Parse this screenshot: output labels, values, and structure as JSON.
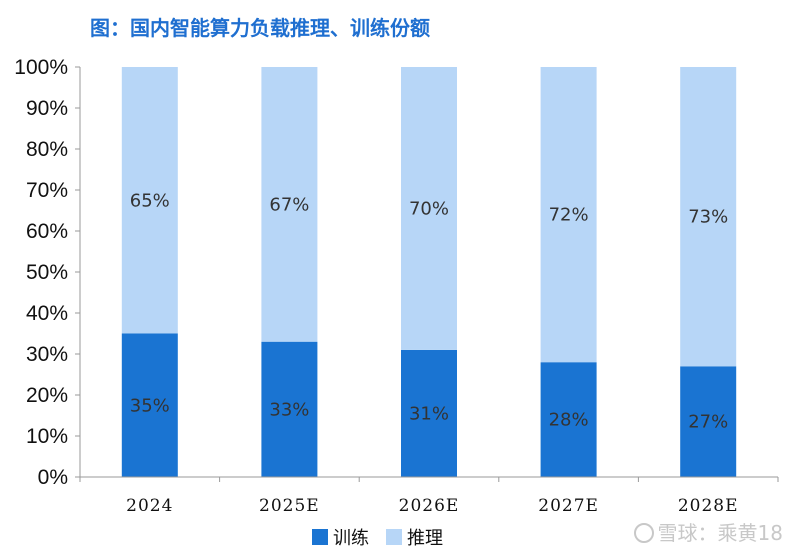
{
  "chart_data": {
    "type": "bar",
    "stacked": true,
    "title": "图：国内智能算力负载推理、训练份额",
    "categories": [
      "2024",
      "2025E",
      "2026E",
      "2027E",
      "2028E"
    ],
    "series": [
      {
        "name": "训练",
        "values": [
          35,
          33,
          31,
          28,
          27
        ],
        "labels": [
          "35%",
          "33%",
          "31%",
          "28%",
          "27%"
        ],
        "color": "#1a74d2"
      },
      {
        "name": "推理",
        "values": [
          65,
          67,
          70,
          72,
          73
        ],
        "labels": [
          "65%",
          "67%",
          "70%",
          "72%",
          "73%"
        ],
        "color": "#b7d6f7"
      }
    ],
    "ylim": [
      0,
      100
    ],
    "yticks": [
      "0%",
      "10%",
      "20%",
      "30%",
      "40%",
      "50%",
      "60%",
      "70%",
      "80%",
      "90%",
      "100%"
    ],
    "grid": false,
    "legend_position": "bottom"
  },
  "watermark": {
    "brand": "雪球",
    "separator": "：",
    "author": "乘黄18",
    "icon": "xueqiu-logo-icon"
  }
}
